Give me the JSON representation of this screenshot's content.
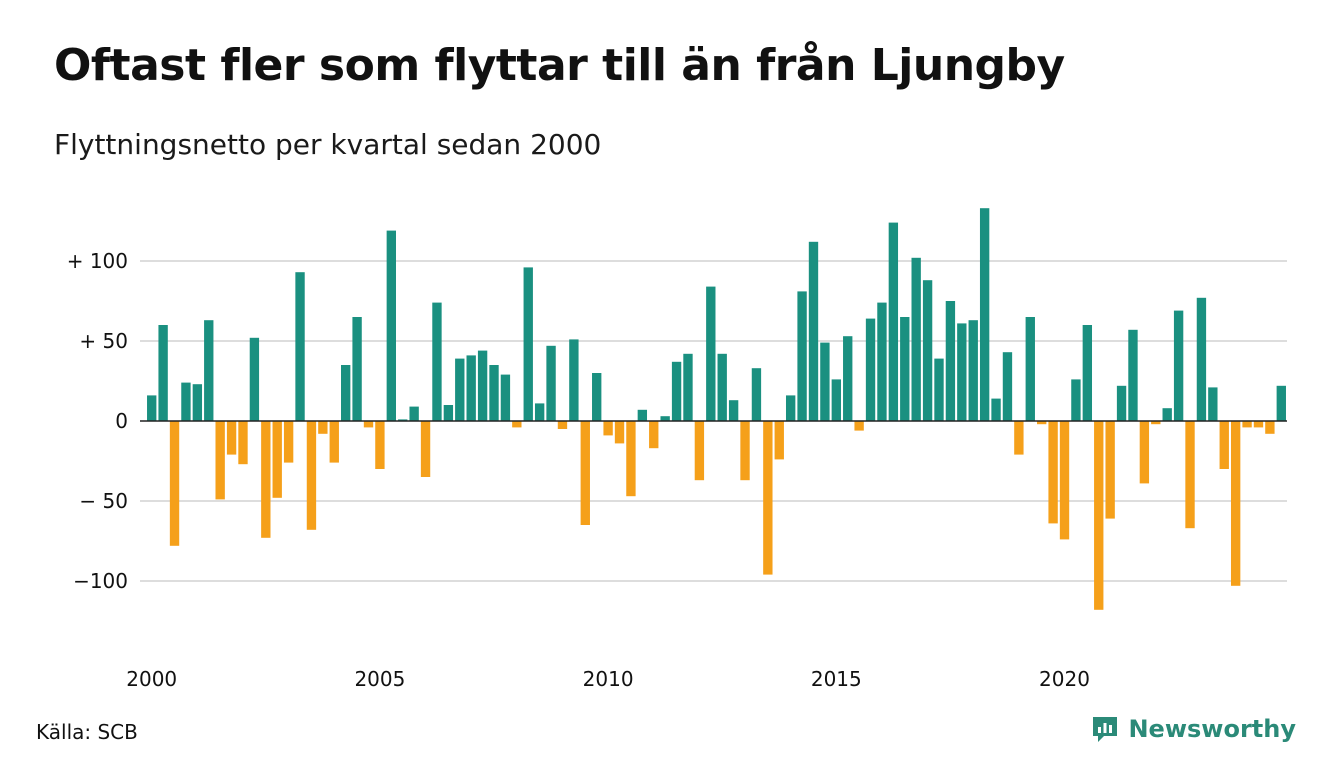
{
  "title": "Oftast fler som flyttar till än från Ljungby",
  "subtitle": "Flyttningsnetto per kvartal sedan 2000",
  "source": "Källa: SCB",
  "brand": "Newsworthy",
  "colors": {
    "positive": "#1a9080",
    "negative": "#f5a01a",
    "grid": "#dddddd",
    "brand": "#2b8a78"
  },
  "chart_data": {
    "type": "bar",
    "title": "Oftast fler som flyttar till än från Ljungby",
    "subtitle": "Flyttningsnetto per kvartal sedan 2000",
    "xlabel": "",
    "ylabel": "",
    "ylim": [
      -125,
      135
    ],
    "grid": true,
    "y_ticks": [
      {
        "value": 100,
        "label": "+ 100"
      },
      {
        "value": 50,
        "label": "+  50"
      },
      {
        "value": 0,
        "label": "0"
      },
      {
        "value": -50,
        "label": "− 50"
      },
      {
        "value": -100,
        "label": "−100"
      }
    ],
    "x_ticks": [
      {
        "value": 2000,
        "label": "2000"
      },
      {
        "value": 2005,
        "label": "2005"
      },
      {
        "value": 2010,
        "label": "2010"
      },
      {
        "value": 2015,
        "label": "2015"
      },
      {
        "value": 2020,
        "label": "2020"
      }
    ],
    "start_year": 2000,
    "categories": [
      "2000 K1",
      "2000 K2",
      "2000 K3",
      "2000 K4",
      "2001 K1",
      "2001 K2",
      "2001 K3",
      "2001 K4",
      "2002 K1",
      "2002 K2",
      "2002 K3",
      "2002 K4",
      "2003 K1",
      "2003 K2",
      "2003 K3",
      "2003 K4",
      "2004 K1",
      "2004 K2",
      "2004 K3",
      "2004 K4",
      "2005 K1",
      "2005 K2",
      "2005 K3",
      "2005 K4",
      "2006 K1",
      "2006 K2",
      "2006 K3",
      "2006 K4",
      "2007 K1",
      "2007 K2",
      "2007 K3",
      "2007 K4",
      "2008 K1",
      "2008 K2",
      "2008 K3",
      "2008 K4",
      "2009 K1",
      "2009 K2",
      "2009 K3",
      "2009 K4",
      "2010 K1",
      "2010 K2",
      "2010 K3",
      "2010 K4",
      "2011 K1",
      "2011 K2",
      "2011 K3",
      "2011 K4",
      "2012 K1",
      "2012 K2",
      "2012 K3",
      "2012 K4",
      "2013 K1",
      "2013 K2",
      "2013 K3",
      "2013 K4",
      "2014 K1",
      "2014 K2",
      "2014 K3",
      "2014 K4",
      "2015 K1",
      "2015 K2",
      "2015 K3",
      "2015 K4",
      "2016 K1",
      "2016 K2",
      "2016 K3",
      "2016 K4",
      "2017 K1",
      "2017 K2",
      "2017 K3",
      "2017 K4",
      "2018 K1",
      "2018 K2",
      "2018 K3",
      "2018 K4",
      "2019 K1",
      "2019 K2",
      "2019 K3",
      "2019 K4",
      "2020 K1",
      "2020 K2",
      "2020 K3",
      "2020 K4",
      "2021 K1",
      "2021 K2",
      "2021 K3",
      "2021 K4",
      "2022 K1",
      "2022 K2",
      "2022 K3",
      "2022 K4",
      "2023 K1",
      "2023 K2",
      "2023 K3",
      "2023 K4",
      "2024 K1",
      "2024 K2",
      "2024 K3",
      "2024 K4"
    ],
    "values": [
      16,
      60,
      -78,
      24,
      23,
      63,
      -49,
      -21,
      -27,
      52,
      -73,
      -48,
      -26,
      93,
      -68,
      -8,
      -26,
      35,
      65,
      -4,
      -30,
      119,
      1,
      9,
      -35,
      74,
      10,
      39,
      41,
      44,
      35,
      29,
      -4,
      96,
      11,
      47,
      -5,
      51,
      -65,
      30,
      -9,
      -14,
      -47,
      7,
      -17,
      3,
      37,
      42,
      -37,
      84,
      42,
      13,
      -37,
      33,
      -96,
      -24,
      16,
      81,
      112,
      49,
      26,
      53,
      -6,
      64,
      74,
      124,
      65,
      102,
      88,
      39,
      75,
      61,
      63,
      133,
      14,
      43,
      -21,
      65,
      -2,
      -64,
      -74,
      26,
      60,
      -118,
      -61,
      22,
      57,
      -39,
      -2,
      8,
      69,
      -67,
      77,
      21,
      -30,
      -103,
      -4,
      -4,
      -8,
      22
    ]
  }
}
